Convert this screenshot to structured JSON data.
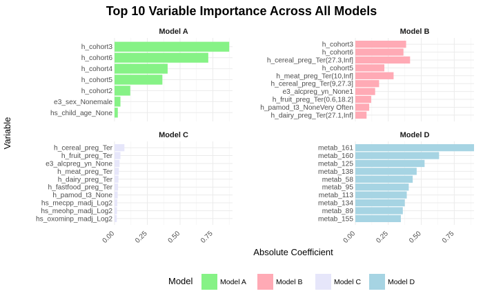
{
  "chart_data": {
    "type": "bar",
    "orientation": "horizontal",
    "title": "Top 10 Variable Importance Across All Models",
    "xlabel": "Absolute Coefficient",
    "ylabel": "Variable",
    "xlim": [
      0,
      0.9
    ],
    "xticks": [
      "0.00",
      "0.25",
      "0.50",
      "0.75"
    ],
    "grid": true,
    "legend": {
      "title": "Model",
      "position": "bottom",
      "entries": [
        {
          "label": "Model A",
          "color": "#86f286"
        },
        {
          "label": "Model B",
          "color": "#ffaab5"
        },
        {
          "label": "Model C",
          "color": "#e6e6fa"
        },
        {
          "label": "Model D",
          "color": "#a6d4e3"
        }
      ]
    },
    "panels": [
      {
        "name": "Model A",
        "color": "#86f286",
        "categories": [
          "h_cohort3",
          "h_cohort6",
          "h_cohort4",
          "h_cohort5",
          "h_cohort2",
          "e3_sex_Nonemale",
          "hs_child_age_None"
        ],
        "values": [
          0.875,
          0.715,
          0.405,
          0.365,
          0.12,
          0.045,
          0.025
        ]
      },
      {
        "name": "Model B",
        "color": "#ffaab5",
        "categories": [
          "h_cohort3",
          "h_cohort6",
          "h_cereal_preg_Ter(27.3,Inf]",
          "h_cohort5",
          "h_meat_preg_Ter(10,Inf]",
          "h_cereal_preg_Ter(9,27.3]",
          "e3_alcpreg_yn_None1",
          "h_fruit_preg_Ter(0.6,18.2]",
          "h_pamod_t3_NoneVery Often",
          "h_dairy_preg_Ter(27.1,Inf]"
        ],
        "values": [
          0.385,
          0.365,
          0.415,
          0.22,
          0.29,
          0.18,
          0.15,
          0.12,
          0.105,
          0.085
        ]
      },
      {
        "name": "Model C",
        "color": "#e6e6fa",
        "categories": [
          "h_cereal_preg_Ter",
          "h_fruit_preg_Ter",
          "e3_alcpreg_yn_None",
          "h_meat_preg_Ter",
          "h_dairy_preg_Ter",
          "h_fastfood_preg_Ter",
          "h_pamod_t3_None",
          "hs_mecpp_madj_Log2",
          "hs_meohp_madj_Log2",
          "hs_oxominp_madj_Log2"
        ],
        "values": [
          0.075,
          0.045,
          0.038,
          0.033,
          0.03,
          0.027,
          0.024,
          0.021,
          0.019,
          0.017
        ]
      },
      {
        "name": "Model D",
        "color": "#a6d4e3",
        "categories": [
          "metab_161",
          "metab_160",
          "metab_125",
          "metab_138",
          "metab_58",
          "metab_95",
          "metab_113",
          "metab_134",
          "metab_89",
          "metab_155"
        ],
        "values": [
          0.9,
          0.635,
          0.525,
          0.465,
          0.435,
          0.405,
          0.39,
          0.375,
          0.36,
          0.345
        ]
      }
    ]
  }
}
